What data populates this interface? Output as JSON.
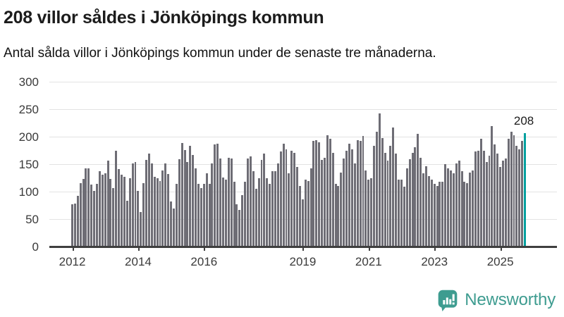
{
  "header": {
    "title": "208 villor såldes i Jönköpings kommun",
    "subtitle": "Antal sålda villor i Jönköpings kommun under de senaste tre månaderna."
  },
  "chart_data": {
    "type": "bar",
    "title": "208 villor såldes i Jönköpings kommun",
    "subtitle": "Antal sålda villor i Jönköpings kommun under de senaste tre månaderna.",
    "x_unit": "month",
    "x_start": "2012-01",
    "x_end": "2025-10",
    "ylim": [
      0,
      300
    ],
    "yticks": [
      0,
      50,
      100,
      150,
      200,
      250,
      300
    ],
    "grid": true,
    "legend": "none",
    "xticks": [
      {
        "label": "2012",
        "month_index": 0
      },
      {
        "label": "2014",
        "month_index": 24
      },
      {
        "label": "2016",
        "month_index": 48
      },
      {
        "label": "2019",
        "month_index": 84
      },
      {
        "label": "2021",
        "month_index": 108
      },
      {
        "label": "2023",
        "month_index": 132
      },
      {
        "label": "2025",
        "month_index": 156
      }
    ],
    "values": [
      78,
      79,
      93,
      117,
      124,
      144,
      143,
      114,
      103,
      115,
      138,
      132,
      134,
      157,
      124,
      107,
      175,
      142,
      132,
      128,
      85,
      125,
      153,
      155,
      102,
      64,
      117,
      159,
      170,
      152,
      128,
      126,
      120,
      140,
      152,
      133,
      83,
      71,
      115,
      160,
      190,
      177,
      155,
      185,
      168,
      144,
      115,
      108,
      115,
      135,
      115,
      153,
      187,
      189,
      161,
      127,
      123,
      163,
      161,
      119,
      78,
      68,
      95,
      119,
      161,
      165,
      138,
      106,
      125,
      159,
      170,
      125,
      115,
      138,
      138,
      153,
      174,
      189,
      178,
      134,
      176,
      172,
      146,
      112,
      87,
      123,
      121,
      144,
      193,
      195,
      191,
      159,
      163,
      204,
      197,
      172,
      115,
      112,
      136,
      161,
      175,
      189,
      178,
      153,
      195,
      193,
      202,
      140,
      123,
      125,
      185,
      210,
      244,
      199,
      172,
      157,
      185,
      218,
      170,
      123,
      123,
      110,
      144,
      160,
      172,
      182,
      206,
      163,
      134,
      148,
      129,
      123,
      115,
      112,
      119,
      119,
      151,
      144,
      140,
      134,
      153,
      157,
      138,
      119,
      117,
      136,
      140,
      174,
      176,
      197,
      176,
      155,
      166,
      220,
      187,
      170,
      146,
      157,
      161,
      197,
      210,
      204,
      185,
      178,
      193,
      208
    ],
    "highlight": {
      "index": 165,
      "value": 208,
      "label": "208"
    },
    "colors": {
      "bar": "#6e6d75",
      "highlight": "#00a09f"
    }
  },
  "footer": {
    "brand": "Newsworthy",
    "brand_color": "#3e9c90"
  }
}
